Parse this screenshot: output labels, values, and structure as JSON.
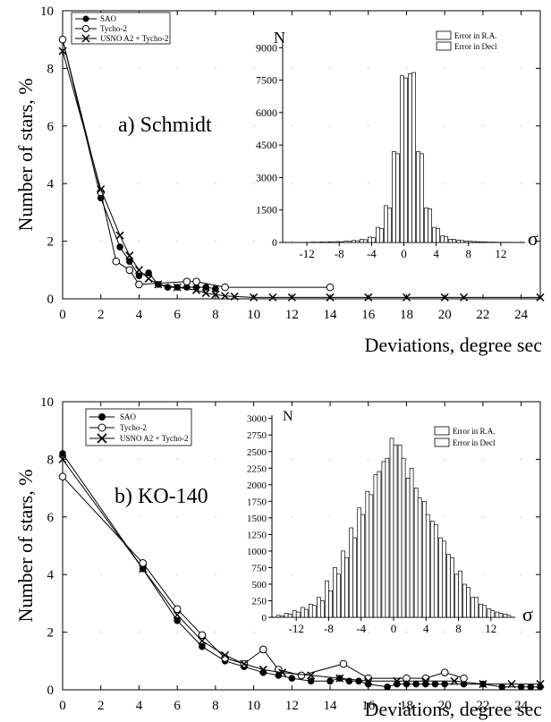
{
  "chart_data": [
    {
      "type": "line",
      "panel_label": "a) Schmidt",
      "xlabel": "Deviations, degree sec",
      "ylabel": "Number of stars, %",
      "xlim": [
        0,
        25
      ],
      "ylim": [
        0,
        10
      ],
      "xticks": [
        0,
        2,
        4,
        6,
        8,
        10,
        12,
        14,
        16,
        18,
        20,
        22,
        24
      ],
      "yticks": [
        0,
        2,
        4,
        6,
        8,
        10
      ],
      "legend_position": "top-left",
      "series": [
        {
          "name": "SAO",
          "marker": "filled-circle",
          "x": [
            0,
            2,
            3,
            3.5,
            4,
            4.5,
            5,
            5.5,
            6,
            6.5,
            7,
            7.5,
            8
          ],
          "y": [
            9.0,
            3.5,
            1.8,
            1.3,
            0.8,
            0.9,
            0.5,
            0.4,
            0.4,
            0.4,
            0.4,
            0.4,
            0.35
          ]
        },
        {
          "name": "Tycho-2",
          "marker": "open-circle",
          "x": [
            0,
            2,
            2.8,
            3.5,
            4,
            6.5,
            7,
            8.5,
            14
          ],
          "y": [
            9.0,
            3.7,
            1.3,
            1.0,
            0.5,
            0.6,
            0.6,
            0.4,
            0.4
          ]
        },
        {
          "name": "USNO A2 + Tycho-2",
          "marker": "cross",
          "x": [
            0,
            2,
            3,
            3.5,
            4,
            4.5,
            5,
            6,
            7,
            7.5,
            8,
            8.5,
            9,
            10,
            11,
            12,
            14,
            16,
            18,
            20,
            21,
            25
          ],
          "y": [
            8.6,
            3.8,
            2.2,
            1.5,
            1.0,
            0.7,
            0.5,
            0.4,
            0.3,
            0.2,
            0.15,
            0.1,
            0.08,
            0.05,
            0.05,
            0.05,
            0.05,
            0.05,
            0.05,
            0.05,
            0.05,
            0.05
          ]
        }
      ],
      "inset": {
        "type": "bar",
        "ylabel": "N",
        "xlabel": "σ",
        "xticks": [
          -12,
          -8,
          -4,
          0,
          4,
          8,
          12
        ],
        "yticks": [
          0,
          1500,
          3000,
          4500,
          6000,
          7500,
          9000
        ],
        "xlim": [
          -15,
          15
        ],
        "ylim": [
          0,
          9300
        ],
        "legend_position": "top-right",
        "legend": [
          "Error in R.A.",
          "Error in Decl"
        ],
        "x": [
          -12,
          -11,
          -10,
          -9,
          -8,
          -7,
          -6,
          -5,
          -4,
          -3,
          -2,
          -1,
          0,
          1,
          2,
          3,
          4,
          5,
          6,
          7,
          8,
          9,
          10,
          11,
          12,
          13,
          14
        ],
        "series": [
          {
            "name": "Error in R.A.",
            "values": [
              10,
              15,
              20,
              25,
              40,
              60,
              90,
              140,
              250,
              700,
              1700,
              4200,
              7700,
              7800,
              4200,
              1600,
              700,
              300,
              150,
              100,
              60,
              40,
              25,
              15,
              10,
              8,
              5
            ]
          },
          {
            "name": "Error in Decl",
            "values": [
              8,
              12,
              18,
              22,
              35,
              55,
              80,
              130,
              220,
              650,
              1600,
              4100,
              7600,
              7850,
              4100,
              1550,
              650,
              280,
              140,
              90,
              55,
              35,
              20,
              12,
              8,
              6,
              4
            ]
          }
        ]
      }
    },
    {
      "type": "line",
      "panel_label": "b) KO-140",
      "xlabel": "Deviations, degree sec",
      "ylabel": "Number of stars, %",
      "xlim": [
        0,
        25
      ],
      "ylim": [
        0,
        10
      ],
      "xticks": [
        0,
        2,
        4,
        6,
        8,
        10,
        12,
        14,
        16,
        18,
        20,
        22,
        24
      ],
      "yticks": [
        0,
        2,
        4,
        6,
        8,
        10
      ],
      "legend_position": "top-left",
      "series": [
        {
          "name": "SAO",
          "marker": "filled-circle",
          "x": [
            0,
            4.2,
            6,
            7.3,
            8.5,
            9.5,
            10.5,
            11.3,
            12,
            13,
            14,
            14.5,
            15,
            15.5,
            16,
            17,
            17.5,
            18,
            18.5,
            19,
            19.5,
            20,
            21,
            22,
            23,
            24,
            24.5,
            25
          ],
          "y": [
            8.2,
            4.2,
            2.4,
            1.5,
            1.0,
            0.8,
            0.6,
            0.5,
            0.4,
            0.3,
            0.3,
            0.4,
            0.3,
            0.3,
            0.2,
            0.1,
            0.2,
            0.2,
            0.2,
            0.2,
            0.2,
            0.2,
            0.2,
            0.2,
            0.1,
            0.1,
            0.1,
            0.1
          ]
        },
        {
          "name": "Tycho-2",
          "marker": "open-circle",
          "x": [
            0,
            4.2,
            6,
            7.3,
            8.5,
            9.5,
            10.5,
            11.3,
            12.5,
            14.7,
            16,
            18,
            19,
            20,
            21
          ],
          "y": [
            7.4,
            4.4,
            2.8,
            1.9,
            1.1,
            0.9,
            1.4,
            0.7,
            0.5,
            0.9,
            0.4,
            0.4,
            0.4,
            0.6,
            0.4
          ]
        },
        {
          "name": "USNO A2 + Tycho-2",
          "marker": "cross",
          "x": [
            0,
            4.2,
            6,
            7.3,
            8.5,
            9.5,
            10.5,
            11.5,
            13,
            14.5,
            16,
            17.5,
            19,
            20.5,
            22,
            23.5,
            25
          ],
          "y": [
            8.0,
            4.2,
            2.6,
            1.7,
            1.2,
            0.9,
            0.7,
            0.6,
            0.5,
            0.4,
            0.3,
            0.3,
            0.3,
            0.3,
            0.2,
            0.2,
            0.2
          ]
        }
      ],
      "inset": {
        "type": "bar",
        "ylabel": "N",
        "xlabel": "σ",
        "xticks": [
          -12,
          -8,
          -4,
          0,
          4,
          8,
          12
        ],
        "yticks": [
          0,
          250,
          500,
          750,
          1000,
          1250,
          1500,
          1750,
          2000,
          2250,
          2500,
          2750,
          3000
        ],
        "xlim": [
          -15,
          15
        ],
        "ylim": [
          0,
          3050
        ],
        "legend_position": "top-right",
        "legend": [
          "Error in R.A.",
          "Error in Decl"
        ],
        "x": [
          -14,
          -13,
          -12,
          -11,
          -10,
          -9,
          -8,
          -7,
          -6,
          -5,
          -4,
          -3,
          -2,
          -1,
          0,
          1,
          2,
          3,
          4,
          5,
          6,
          7,
          8,
          9,
          10,
          11,
          12,
          13,
          14
        ],
        "series": [
          {
            "name": "Error in R.A.",
            "values": [
              30,
              60,
              100,
              150,
              200,
              300,
              550,
              750,
              1000,
              1350,
              1650,
              1900,
              2150,
              2350,
              2700,
              2600,
              2100,
              1950,
              1750,
              1450,
              1200,
              950,
              650,
              500,
              300,
              200,
              130,
              80,
              50
            ]
          },
          {
            "name": "Error in Decl",
            "values": [
              20,
              50,
              80,
              120,
              180,
              250,
              400,
              650,
              900,
              1200,
              1550,
              1850,
              2200,
              2400,
              2600,
              2400,
              2250,
              1800,
              1550,
              1400,
              1150,
              900,
              700,
              450,
              300,
              180,
              100,
              60,
              30
            ]
          }
        ]
      }
    }
  ]
}
